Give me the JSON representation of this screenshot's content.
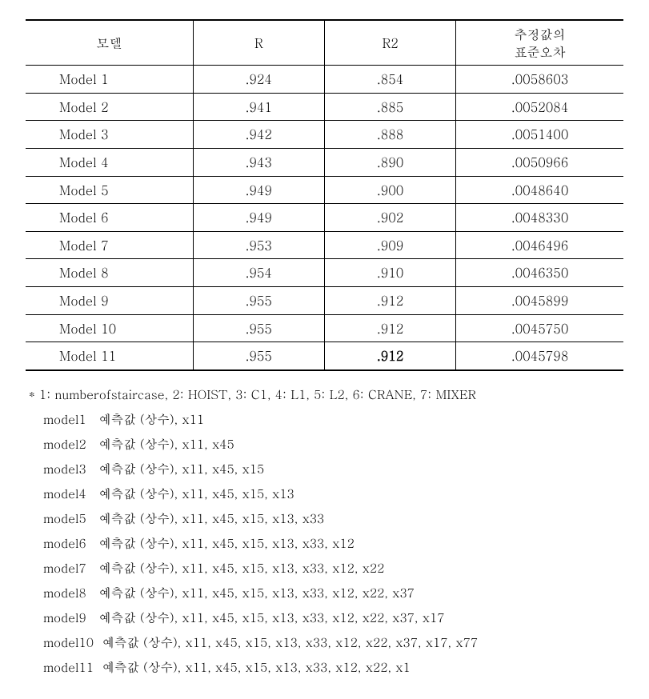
{
  "table": {
    "headers": {
      "model": "모델",
      "r": "R",
      "r2": "R2",
      "se_line1": "추정값의",
      "se_line2": "표준오차"
    },
    "rows": [
      {
        "model": "Model 1",
        "r": ".924",
        "r2": ".854",
        "se": ".0058603",
        "r2_bold": false
      },
      {
        "model": "Model 2",
        "r": ".941",
        "r2": ".885",
        "se": ".0052084",
        "r2_bold": false
      },
      {
        "model": "Model 3",
        "r": ".942",
        "r2": ".888",
        "se": ".0051400",
        "r2_bold": false
      },
      {
        "model": "Model 4",
        "r": ".943",
        "r2": ".890",
        "se": ".0050966",
        "r2_bold": false
      },
      {
        "model": "Model 5",
        "r": ".949",
        "r2": ".900",
        "se": ".0048640",
        "r2_bold": false
      },
      {
        "model": "Model 6",
        "r": ".949",
        "r2": ".902",
        "se": ".0048330",
        "r2_bold": false
      },
      {
        "model": "Model 7",
        "r": ".953",
        "r2": ".909",
        "se": ".0046496",
        "r2_bold": false
      },
      {
        "model": "Model 8",
        "r": ".954",
        "r2": ".910",
        "se": ".0046350",
        "r2_bold": false
      },
      {
        "model": "Model 9",
        "r": ".955",
        "r2": ".912",
        "se": ".0045899",
        "r2_bold": false
      },
      {
        "model": "Model 10",
        "r": ".955",
        "r2": ".912",
        "se": ".0045750",
        "r2_bold": false
      },
      {
        "model": "Model 11",
        "r": ".955",
        "r2": ".912",
        "se": ".0045798",
        "r2_bold": true
      }
    ]
  },
  "notes": {
    "legend": "* 1: numberofstaircase, 2: HOIST, 3: C1, 4: L1, 5: L2, 6: CRANE, 7: MIXER",
    "lines": [
      "model1   예측값 (상수), x11",
      "model2   예측값 (상수), x11, x45",
      "model3   예측값 (상수), x11, x45, x15",
      "model4   예측값 (상수), x11, x45, x15, x13",
      "model5   예측값 (상수), x11, x45, x15, x13, x33",
      "model6   예측값 (상수), x11, x45, x15, x13, x33, x12",
      "model7   예측값 (상수), x11, x45, x15, x13, x33, x12, x22",
      "model8   예측값 (상수), x11, x45, x15, x13, x33, x12, x22, x37",
      "model9   예측값 (상수), x11, x45, x15, x13, x33, x12, x22, x37, x17",
      "model10  예측값 (상수), x11, x45, x15, x13, x33, x12, x22, x37, x17, x77",
      "model11  예측값 (상수), x11, x45, x15, x13, x33, x12, x22, x1"
    ]
  }
}
